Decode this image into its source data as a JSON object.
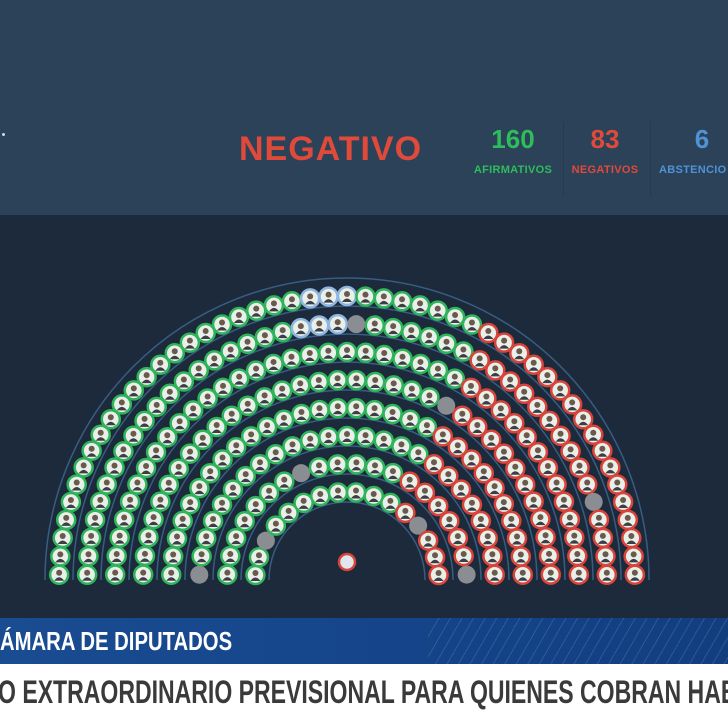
{
  "scoreboard": {
    "result": "NEGATIVO",
    "stats": [
      {
        "value": "160",
        "label": "AFIRMATIVOS",
        "color": "#2ebd5a"
      },
      {
        "value": "83",
        "label": "NEGATIVOS",
        "color": "#e04a3a"
      },
      {
        "value": "6",
        "label": "ABSTENCIO",
        "color": "#4f93d6"
      }
    ]
  },
  "chamber": {
    "counts": {
      "afirmativos": 160,
      "negativos": 83,
      "abstenciones": 6,
      "ausentes": 8
    },
    "colors": {
      "afirmativo": "#2fb45a",
      "negativo": "#d8443a",
      "abstencion": "#8fb6e0",
      "ausente": "#8a8e93",
      "arc": "#3f6a94"
    }
  },
  "lower_third": {
    "chamber_name": "ÁMARA DE DIPUTADOS",
    "headline": "O EXTRAORDINARIO PREVISIONAL PARA QUIENES COBRAN HABERES MÍN"
  }
}
